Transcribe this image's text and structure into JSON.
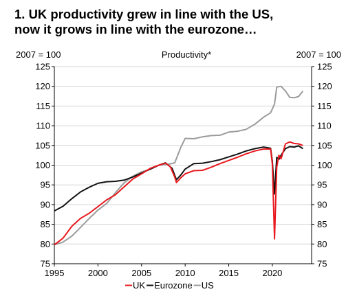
{
  "title_lines": [
    "1. UK productivity grew in line with the US,",
    "now it grows in line with the eurozone…"
  ],
  "chart_data": {
    "type": "line",
    "title": "Productivity*",
    "left_axis_label": "2007 = 100",
    "right_axis_label": "2007 = 100",
    "xlim": [
      1995,
      2024.5
    ],
    "ylim": [
      75,
      125
    ],
    "x_ticks": [
      1995,
      2000,
      2005,
      2010,
      2015,
      2020
    ],
    "y_ticks": [
      75,
      80,
      85,
      90,
      95,
      100,
      105,
      110,
      115,
      120,
      125
    ],
    "grid": "horizontal",
    "legend_position": "bottom",
    "series": [
      {
        "name": "UK",
        "color": "#e8191e",
        "points": [
          [
            1995,
            79.8
          ],
          [
            1996,
            81.5
          ],
          [
            1997,
            84.5
          ],
          [
            1998,
            86.5
          ],
          [
            1999,
            87.8
          ],
          [
            2000,
            89.5
          ],
          [
            2001,
            91.2
          ],
          [
            2002,
            92.5
          ],
          [
            2003,
            94.5
          ],
          [
            2004,
            96.5
          ],
          [
            2005,
            97.8
          ],
          [
            2006,
            99.2
          ],
          [
            2007,
            100.0
          ],
          [
            2007.75,
            100.5
          ],
          [
            2008.3,
            99.6
          ],
          [
            2008.8,
            97.0
          ],
          [
            2009.0,
            95.6
          ],
          [
            2009.5,
            96.8
          ],
          [
            2010,
            97.8
          ],
          [
            2011,
            98.6
          ],
          [
            2012,
            98.7
          ],
          [
            2013,
            99.5
          ],
          [
            2014,
            100.4
          ],
          [
            2015,
            101.2
          ],
          [
            2016,
            102.0
          ],
          [
            2017,
            102.9
          ],
          [
            2018,
            103.6
          ],
          [
            2019,
            104.1
          ],
          [
            2019.8,
            104.1
          ],
          [
            2020.0,
            100.3
          ],
          [
            2020.25,
            81.3
          ],
          [
            2020.5,
            99.5
          ],
          [
            2020.75,
            102.5
          ],
          [
            2021,
            101.6
          ],
          [
            2021.5,
            105.4
          ],
          [
            2022,
            105.9
          ],
          [
            2022.5,
            105.5
          ],
          [
            2023,
            105.4
          ],
          [
            2023.5,
            105.0
          ]
        ]
      },
      {
        "name": "Eurozone",
        "color": "#111111",
        "points": [
          [
            1995,
            88.4
          ],
          [
            1996,
            89.6
          ],
          [
            1997,
            91.5
          ],
          [
            1998,
            93.2
          ],
          [
            1999,
            94.4
          ],
          [
            2000,
            95.4
          ],
          [
            2001,
            95.8
          ],
          [
            2002,
            95.9
          ],
          [
            2003,
            96.2
          ],
          [
            2004,
            97.0
          ],
          [
            2005,
            98.0
          ],
          [
            2006,
            99.0
          ],
          [
            2007,
            100.0
          ],
          [
            2007.75,
            100.6
          ],
          [
            2008.5,
            99.2
          ],
          [
            2009.0,
            96.3
          ],
          [
            2009.5,
            97.5
          ],
          [
            2010,
            99.0
          ],
          [
            2011,
            100.4
          ],
          [
            2012,
            100.5
          ],
          [
            2013,
            100.9
          ],
          [
            2014,
            101.4
          ],
          [
            2015,
            102.1
          ],
          [
            2016,
            102.8
          ],
          [
            2017,
            103.6
          ],
          [
            2018,
            104.2
          ],
          [
            2019,
            104.6
          ],
          [
            2019.8,
            104.3
          ],
          [
            2020.0,
            101.0
          ],
          [
            2020.25,
            92.7
          ],
          [
            2020.5,
            102.0
          ],
          [
            2020.75,
            101.5
          ],
          [
            2021,
            102.5
          ],
          [
            2021.5,
            104.2
          ],
          [
            2022,
            104.7
          ],
          [
            2022.5,
            104.6
          ],
          [
            2023,
            104.9
          ],
          [
            2023.5,
            104.2
          ]
        ]
      },
      {
        "name": "US",
        "color": "#9b9b9b",
        "points": [
          [
            1995,
            79.8
          ],
          [
            1996,
            80.5
          ],
          [
            1997,
            82.0
          ],
          [
            1998,
            84.2
          ],
          [
            1999,
            86.5
          ],
          [
            2000,
            88.6
          ],
          [
            2001,
            90.3
          ],
          [
            2002,
            93.0
          ],
          [
            2003,
            95.5
          ],
          [
            2004,
            97.2
          ],
          [
            2005,
            98.3
          ],
          [
            2006,
            99.0
          ],
          [
            2007,
            100.0
          ],
          [
            2008,
            100.2
          ],
          [
            2008.8,
            100.6
          ],
          [
            2009.5,
            104.5
          ],
          [
            2010,
            106.8
          ],
          [
            2011,
            106.7
          ],
          [
            2012,
            107.2
          ],
          [
            2013,
            107.5
          ],
          [
            2014,
            107.6
          ],
          [
            2015,
            108.4
          ],
          [
            2016,
            108.6
          ],
          [
            2017,
            109.1
          ],
          [
            2018,
            110.4
          ],
          [
            2019,
            112.2
          ],
          [
            2019.8,
            113.3
          ],
          [
            2020.25,
            115.5
          ],
          [
            2020.5,
            119.8
          ],
          [
            2021,
            120.0
          ],
          [
            2021.5,
            118.8
          ],
          [
            2022,
            117.2
          ],
          [
            2022.5,
            117.1
          ],
          [
            2023,
            117.4
          ],
          [
            2023.5,
            118.8
          ]
        ]
      }
    ]
  }
}
